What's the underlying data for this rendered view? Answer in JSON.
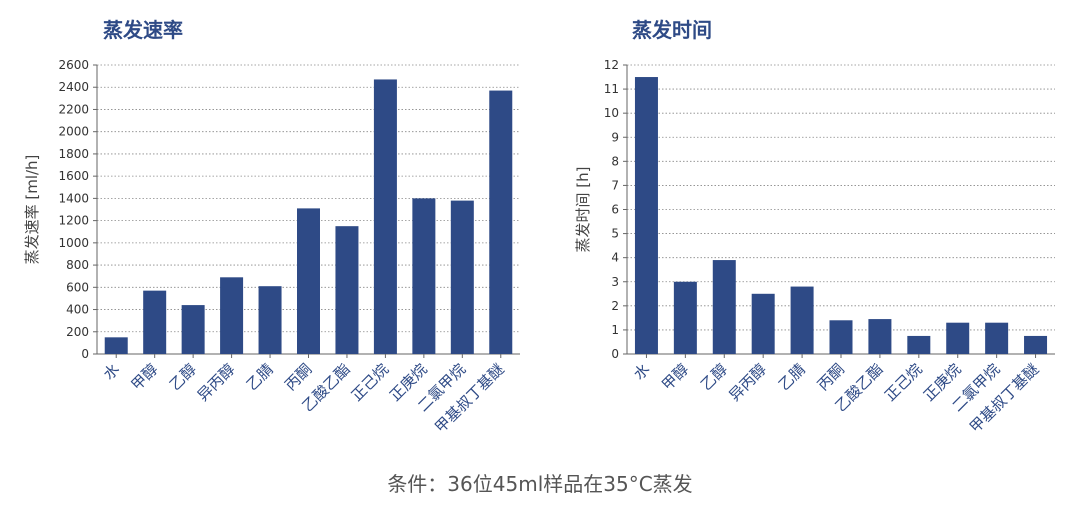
{
  "caption": "条件：36位45ml样品在35°C蒸发",
  "colors": {
    "bar": "#2e4a86",
    "title": "#2e4a86",
    "tick": "#333333",
    "category": "#2e4a86",
    "axis": "#666666",
    "grid": "#888888"
  },
  "chart_data": [
    {
      "type": "bar",
      "title": "蒸发速率",
      "ylabel": "蒸发速率 [ml/h]",
      "xlabel": "",
      "categories": [
        "水",
        "甲醇",
        "乙醇",
        "异丙醇",
        "乙腈",
        "丙酮",
        "乙酸乙酯",
        "正己烷",
        "正庚烷",
        "二氯甲烷",
        "甲基叔丁基醚"
      ],
      "values": [
        150,
        570,
        440,
        690,
        610,
        1310,
        1150,
        2470,
        1400,
        1380,
        2370
      ],
      "ylim": [
        0,
        2600
      ],
      "yticks": [
        0,
        200,
        400,
        600,
        800,
        1000,
        1200,
        1400,
        1600,
        1800,
        2000,
        2200,
        2400,
        2600
      ],
      "grid": true
    },
    {
      "type": "bar",
      "title": "蒸发时间",
      "ylabel": "蒸发时间 [h]",
      "xlabel": "",
      "categories": [
        "水",
        "甲醇",
        "乙醇",
        "异丙醇",
        "乙腈",
        "丙酮",
        "乙酸乙酯",
        "正己烷",
        "正庚烷",
        "二氯甲烷",
        "甲基叔丁基醚"
      ],
      "values": [
        11.5,
        3.0,
        3.9,
        2.5,
        2.8,
        1.4,
        1.45,
        0.75,
        1.3,
        1.3,
        0.75
      ],
      "ylim": [
        0,
        12
      ],
      "yticks": [
        0,
        1,
        2,
        3,
        4,
        5,
        6,
        7,
        8,
        9,
        10,
        11,
        12
      ],
      "grid": true
    }
  ]
}
